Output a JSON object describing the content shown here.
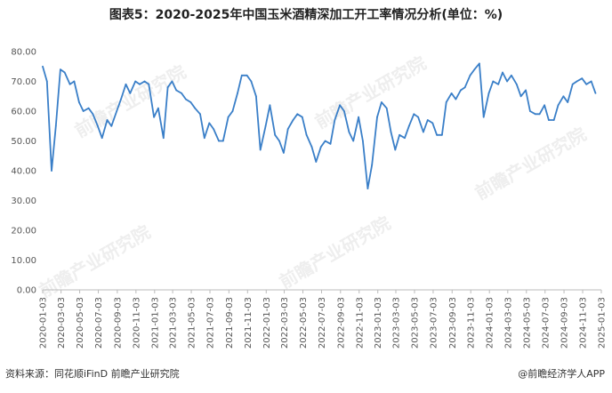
{
  "title": "图表5：2020-2025年中国玉米酒精深加工开工率情况分析(单位：%)",
  "source_text": "资料来源：同花顺iFinD 前瞻产业研究院",
  "brand_text": "@前瞻经济学人APP",
  "watermark_text": "前瞻产业研究院",
  "colors": {
    "line": "#3a7fc8",
    "axis": "#bbbbbb",
    "grid": "#e6e6e6"
  },
  "chart_data": {
    "type": "line",
    "title": "图表5：2020-2025年中国玉米酒精深加工开工率情况分析(单位：%)",
    "xlabel": "",
    "ylabel": "",
    "ylim": [
      0,
      80
    ],
    "yticks": [
      "0.00",
      "10.00",
      "20.00",
      "30.00",
      "40.00",
      "50.00",
      "60.00",
      "70.00",
      "80.00"
    ],
    "xticks": [
      "2020-01-03",
      "2020-03-03",
      "2020-05-03",
      "2020-07-03",
      "2020-09-03",
      "2020-11-03",
      "2021-01-03",
      "2021-03-03",
      "2021-05-03",
      "2021-07-03",
      "2021-09-03",
      "2021-11-03",
      "2022-01-03",
      "2022-03-03",
      "2022-05-03",
      "2022-07-03",
      "2022-09-03",
      "2022-11-03",
      "2023-01-03",
      "2023-03-03",
      "2023-05-03",
      "2023-07-03",
      "2023-09-03",
      "2023-11-03",
      "2024-01-03",
      "2024-03-03",
      "2024-05-03",
      "2024-07-03",
      "2024-09-03",
      "2024-11-03",
      "2025-01-03"
    ],
    "grid": false,
    "series": [
      {
        "x": [
          "2020-01-03",
          "2020-01-17",
          "2020-02-01",
          "2020-02-15",
          "2020-03-01",
          "2020-03-15",
          "2020-04-01",
          "2020-04-15",
          "2020-05-01",
          "2020-05-15",
          "2020-06-01",
          "2020-06-15",
          "2020-07-01",
          "2020-07-15",
          "2020-08-01",
          "2020-08-15",
          "2020-09-01",
          "2020-09-15",
          "2020-10-01",
          "2020-10-15",
          "2020-11-01",
          "2020-11-15",
          "2020-12-01",
          "2020-12-15",
          "2021-01-01",
          "2021-01-15",
          "2021-02-01",
          "2021-02-15",
          "2021-03-01",
          "2021-03-15",
          "2021-04-01",
          "2021-04-15",
          "2021-05-01",
          "2021-05-15",
          "2021-06-01",
          "2021-06-15",
          "2021-07-01",
          "2021-07-15",
          "2021-08-01",
          "2021-08-15",
          "2021-09-01",
          "2021-09-15",
          "2021-10-01",
          "2021-10-15",
          "2021-11-01",
          "2021-11-15",
          "2021-12-01",
          "2021-12-15",
          "2022-01-01",
          "2022-01-15",
          "2022-02-01",
          "2022-02-15",
          "2022-03-01",
          "2022-03-15",
          "2022-04-01",
          "2022-04-15",
          "2022-05-01",
          "2022-05-15",
          "2022-06-01",
          "2022-06-15",
          "2022-07-01",
          "2022-07-15",
          "2022-08-01",
          "2022-08-15",
          "2022-09-01",
          "2022-09-15",
          "2022-10-01",
          "2022-10-15",
          "2022-11-01",
          "2022-11-15",
          "2022-12-01",
          "2022-12-15",
          "2023-01-01",
          "2023-01-15",
          "2023-02-01",
          "2023-02-15",
          "2023-03-01",
          "2023-03-15",
          "2023-04-01",
          "2023-04-15",
          "2023-05-01",
          "2023-05-15",
          "2023-06-01",
          "2023-06-15",
          "2023-07-01",
          "2023-07-15",
          "2023-08-01",
          "2023-08-15",
          "2023-09-01",
          "2023-09-15",
          "2023-10-01",
          "2023-10-15",
          "2023-11-01",
          "2023-11-15",
          "2023-12-01",
          "2023-12-15",
          "2024-01-01",
          "2024-01-15",
          "2024-02-01",
          "2024-02-15",
          "2024-03-01",
          "2024-03-15",
          "2024-04-01",
          "2024-04-15",
          "2024-05-01",
          "2024-05-15",
          "2024-06-01",
          "2024-06-15",
          "2024-07-01",
          "2024-07-15",
          "2024-08-01",
          "2024-08-15",
          "2024-09-01",
          "2024-09-15",
          "2024-10-01",
          "2024-10-15",
          "2024-11-01",
          "2024-11-15",
          "2024-12-01",
          "2024-12-15"
        ],
        "values": [
          75,
          70,
          40,
          55,
          74,
          73,
          69,
          70,
          63,
          60,
          61,
          59,
          55,
          51,
          57,
          55,
          60,
          64,
          69,
          66,
          70,
          69,
          70,
          69,
          58,
          61,
          51,
          68,
          70,
          67,
          66,
          64,
          63,
          61,
          59,
          51,
          56,
          54,
          50,
          50,
          58,
          60,
          66,
          72,
          72,
          70,
          65,
          47,
          55,
          62,
          52,
          50,
          46,
          54,
          57,
          59,
          58,
          52,
          48,
          43,
          48,
          50,
          49,
          57,
          62,
          60,
          53,
          50,
          58,
          50,
          34,
          42,
          58,
          63,
          61,
          53,
          47,
          52,
          51,
          55,
          59,
          58,
          53,
          57,
          56,
          52,
          52,
          63,
          66,
          64,
          67,
          68,
          72,
          74,
          76,
          58,
          66,
          70,
          69,
          73,
          70,
          72,
          69,
          65,
          67,
          60,
          59,
          59,
          62,
          57,
          57,
          62,
          65,
          63,
          69,
          70,
          71,
          69,
          70,
          66
        ]
      }
    ]
  }
}
